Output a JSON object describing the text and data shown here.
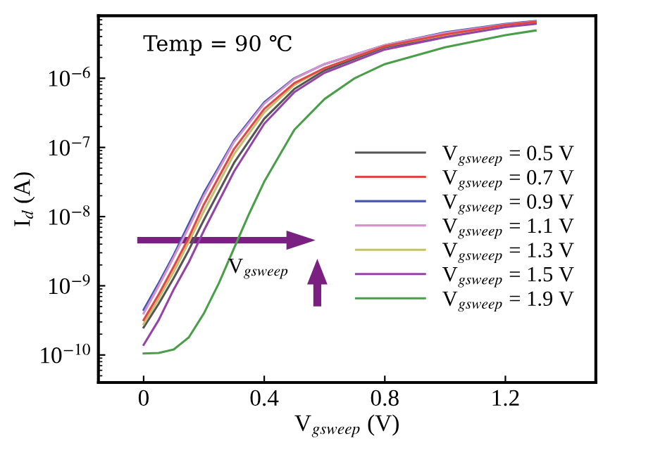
{
  "chart_data": {
    "type": "line",
    "xlabel": "V$_{gsweep}$ (V)",
    "ylabel": "I$_{d}$ (A)",
    "x": [
      0,
      0.05,
      0.1,
      0.15,
      0.2,
      0.3,
      0.4,
      0.5,
      0.6,
      0.8,
      1.0,
      1.2,
      1.3
    ],
    "series": [
      {
        "name": "V$_{gsweep}$ = 0.5 V",
        "color": "#555555",
        "values": [
          2.5e-10,
          5.5e-10,
          1.3e-09,
          3.3e-09,
          9e-09,
          6e-08,
          2.6e-07,
          7e-07,
          1.3e-06,
          2.8e-06,
          4e-06,
          5.6e-06,
          6.2e-06
        ]
      },
      {
        "name": "V$_{gsweep}$ = 0.7 V",
        "color": "#e04848",
        "values": [
          3.2e-10,
          7.5e-10,
          1.9e-09,
          5e-09,
          1.5e-08,
          9.5e-08,
          3.6e-07,
          8.5e-07,
          1.4e-06,
          2.9e-06,
          4.3e-06,
          5.9e-06,
          6.5e-06
        ]
      },
      {
        "name": "V$_{gsweep}$ = 0.9 V",
        "color": "#4656b0",
        "values": [
          4.5e-10,
          1.1e-09,
          2.8e-09,
          7.9e-09,
          2.2e-08,
          1.26e-07,
          4.5e-07,
          1e-06,
          1.6e-06,
          3e-06,
          4.6e-06,
          6.1e-06,
          6.7e-06
        ]
      },
      {
        "name": "V$_{gsweep}$ = 1.1 V",
        "color": "#d494cc",
        "values": [
          4e-10,
          1e-09,
          2.6e-09,
          7e-09,
          2e-08,
          1.2e-07,
          4.3e-07,
          9.8e-07,
          1.6e-06,
          3e-06,
          4.5e-06,
          6e-06,
          6.6e-06
        ]
      },
      {
        "name": "V$_{gsweep}$ = 1.3 V",
        "color": "#c4c070",
        "values": [
          2.8e-10,
          6.5e-10,
          1.6e-09,
          4.3e-09,
          1.2e-08,
          8e-08,
          3.2e-07,
          8e-07,
          1.4e-06,
          2.9e-06,
          4.2e-06,
          5.8e-06,
          6.4e-06
        ]
      },
      {
        "name": "V$_{gsweep}$ = 1.5 V",
        "color": "#9444a4",
        "values": [
          1.4e-10,
          3.2e-10,
          8.9e-10,
          2.2e-09,
          6.3e-09,
          4.5e-08,
          2.2e-07,
          6.3e-07,
          1.2e-06,
          2.6e-06,
          3.9e-06,
          5.5e-06,
          6.1e-06
        ]
      },
      {
        "name": "V$_{gsweep}$ = 1.9 V",
        "color": "#4a9e4a",
        "x": [
          0,
          0.05,
          0.1,
          0.15,
          0.2,
          0.25,
          0.3,
          0.35,
          0.4,
          0.5,
          0.6,
          0.7,
          0.8,
          1.0,
          1.2,
          1.3
        ],
        "values": [
          1.05e-10,
          1.07e-10,
          1.2e-10,
          1.8e-10,
          4e-10,
          1.1e-09,
          3.5e-09,
          1.1e-08,
          3.2e-08,
          1.8e-07,
          5e-07,
          1e-06,
          1.6e-06,
          2.8e-06,
          4.2e-06,
          4.9e-06
        ]
      }
    ],
    "log": "y",
    "xlim": [
      -0.15,
      1.5
    ],
    "ylim": [
      4e-11,
      8e-06
    ],
    "xticks": [
      0,
      0.4,
      0.8,
      1.2
    ],
    "yticks": [
      {
        "value": 1e-10,
        "label": "10$^{−10}$"
      },
      {
        "value": 1e-09,
        "label": "10$^{−9}$"
      },
      {
        "value": 1e-08,
        "label": "10$^{−8}$"
      },
      {
        "value": 1e-07,
        "label": "10$^{−7}$"
      },
      {
        "value": 1e-06,
        "label": "10$^{−6}$"
      }
    ],
    "annotations": [
      "Temp = 90 ℃",
      "V$_{gsweep}$"
    ],
    "legend": "right",
    "grid": false,
    "marker": "none",
    "line_style": "solid"
  }
}
